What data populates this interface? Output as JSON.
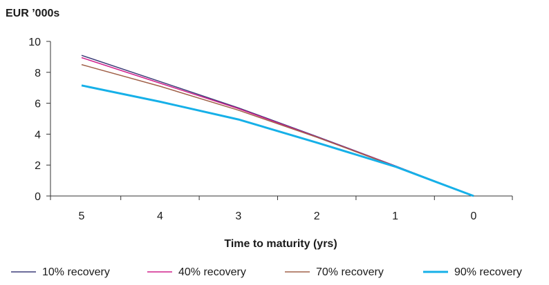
{
  "chart_data": {
    "type": "line",
    "unit_label": "EUR ’000s",
    "xlabel": "Time to maturity (yrs)",
    "ylabel": "",
    "x": [
      5,
      4,
      3,
      2,
      1,
      0
    ],
    "x_tick_labels": [
      "5",
      "4",
      "3",
      "2",
      "1",
      "0"
    ],
    "y_tick_labels": [
      "0",
      "2",
      "4",
      "6",
      "8",
      "10"
    ],
    "ylim": [
      0,
      10
    ],
    "grid": false,
    "legend_position": "bottom",
    "series": [
      {
        "name": "10% recovery",
        "color": "#3c3c78",
        "values": [
          9.1,
          7.4,
          5.7,
          3.85,
          1.95,
          0
        ]
      },
      {
        "name": "40% recovery",
        "color": "#d0208c",
        "values": [
          8.95,
          7.3,
          5.65,
          3.82,
          1.94,
          0
        ]
      },
      {
        "name": "70% recovery",
        "color": "#a06048",
        "values": [
          8.5,
          7.1,
          5.55,
          3.8,
          1.92,
          0
        ]
      },
      {
        "name": "90% recovery",
        "color": "#16b0e8",
        "values": [
          7.15,
          6.1,
          4.95,
          3.45,
          1.9,
          0
        ]
      }
    ]
  }
}
